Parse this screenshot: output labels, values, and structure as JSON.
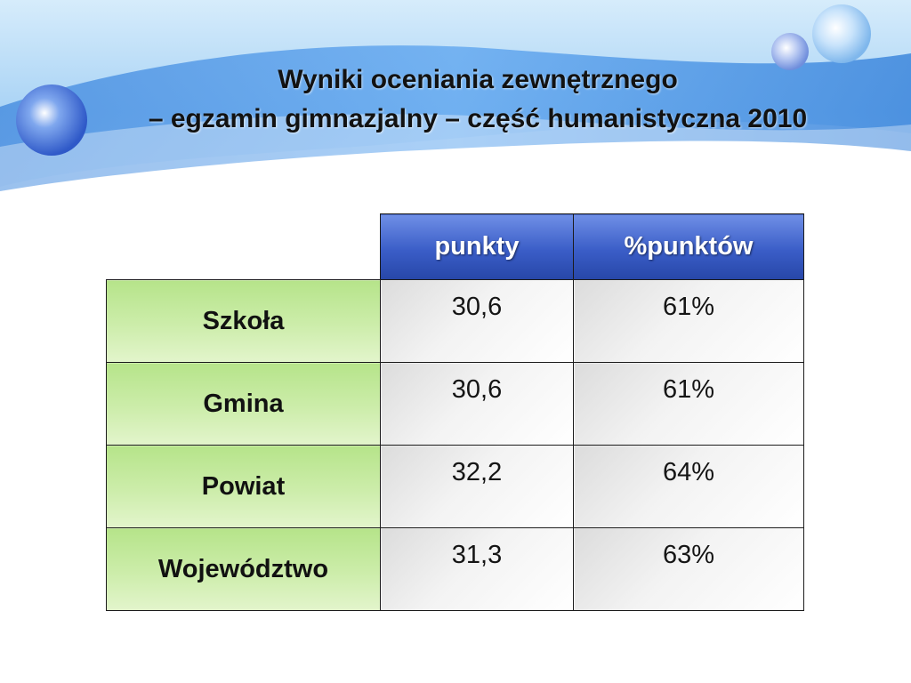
{
  "slide": {
    "title_line1": "Wyniki oceniania zewnętrznego",
    "title_line2": "– egzamin gimnazjalny – część humanistyczna 2010"
  },
  "table": {
    "headers": [
      "punkty",
      "%punktów"
    ],
    "rows": [
      {
        "label": "Szkoła",
        "punkty": "30,6",
        "procent": "61%"
      },
      {
        "label": "Gmina",
        "punkty": "30,6",
        "procent": "61%"
      },
      {
        "label": "Powiat",
        "punkty": "32,2",
        "procent": "64%"
      },
      {
        "label": "Województwo",
        "punkty": "31,3",
        "procent": "63%"
      }
    ]
  },
  "colors": {
    "header_blue": "#3a5dc7",
    "row_green": "#cdedab",
    "banner_blue": "#5aa0e6"
  }
}
